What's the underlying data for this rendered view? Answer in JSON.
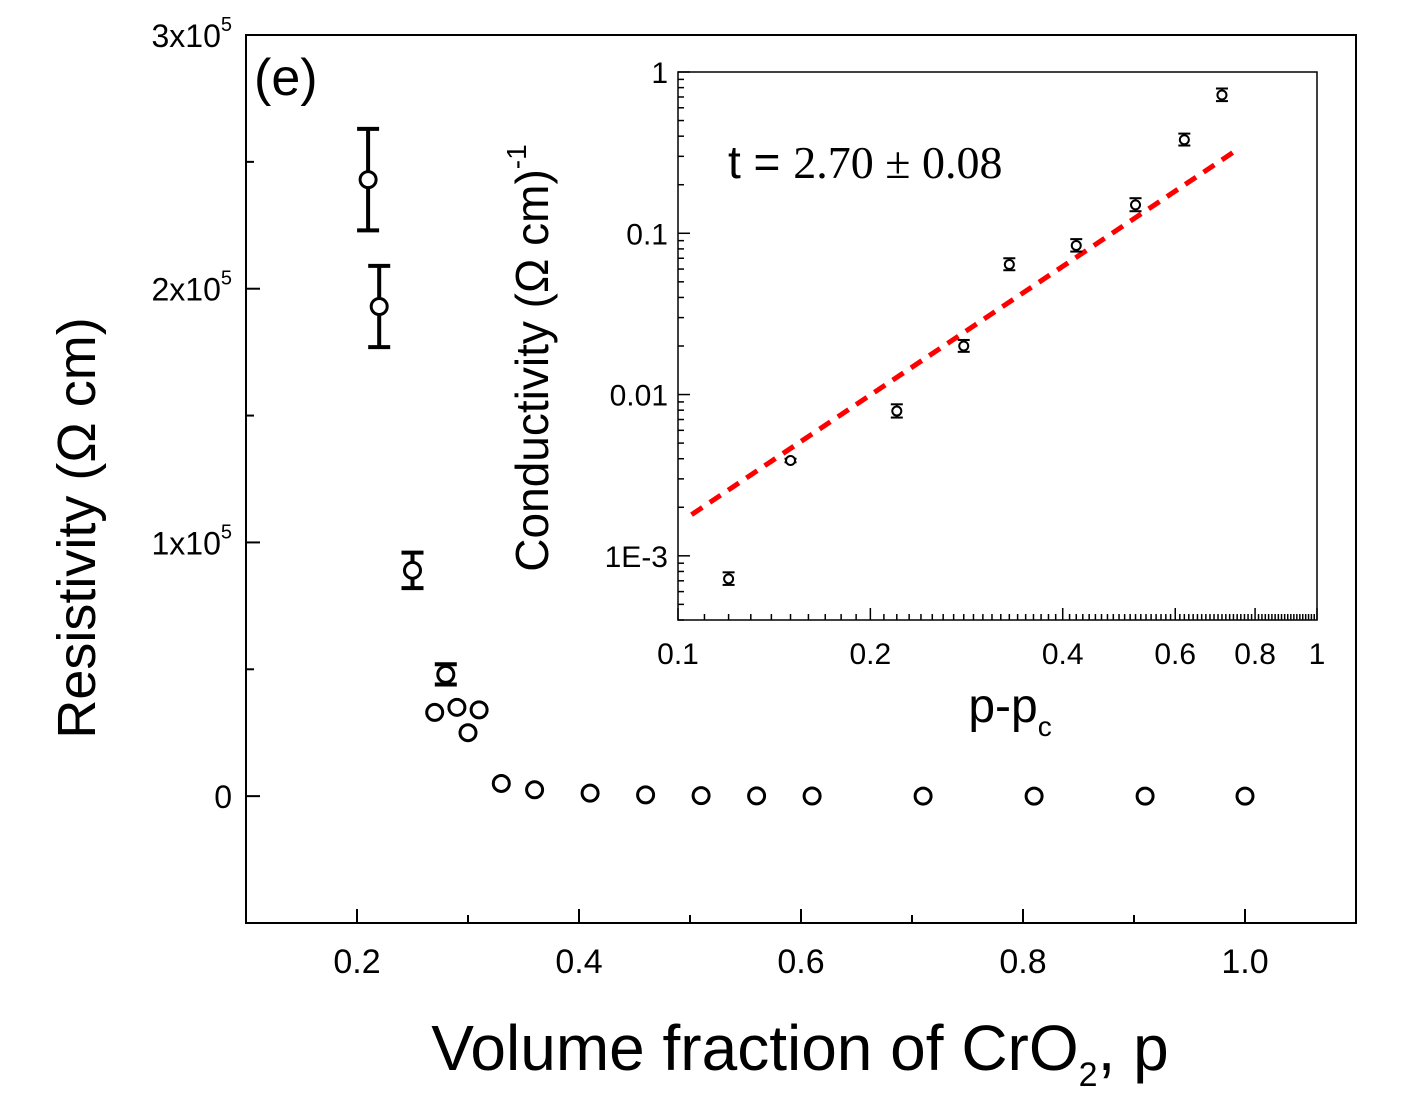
{
  "chart_data": [
    {
      "type": "scatter",
      "panel_label": "(e)",
      "xlabel": "Volume fraction of CrO",
      "xlabel_sub": "2",
      "xlabel_tail": ", p",
      "ylabel": "Resistivity (Ω cm)",
      "xlim": [
        0.1,
        1.1
      ],
      "ylim": [
        -50000,
        300000
      ],
      "x_ticks": [
        {
          "value": 0.2,
          "label": "0.2"
        },
        {
          "value": 0.4,
          "label": "0.4"
        },
        {
          "value": 0.6,
          "label": "0.6"
        },
        {
          "value": 0.8,
          "label": "0.8"
        },
        {
          "value": 1.0,
          "label": "1.0"
        }
      ],
      "x_minor_ticks": [
        0.3,
        0.5,
        0.7,
        0.9
      ],
      "y_ticks": [
        {
          "value": 0,
          "label": "0",
          "exp": ""
        },
        {
          "value": 100000,
          "label": "1x10",
          "exp": "5"
        },
        {
          "value": 200000,
          "label": "2x10",
          "exp": "5"
        },
        {
          "value": 300000,
          "label": "3x10",
          "exp": "5"
        }
      ],
      "y_minor_ticks": [
        50000,
        150000,
        250000
      ],
      "series": [
        {
          "name": "resistivity",
          "points": [
            {
              "x": 0.21,
              "y": 243000,
              "err": 20000
            },
            {
              "x": 0.22,
              "y": 193000,
              "err": 16000
            },
            {
              "x": 0.25,
              "y": 89000,
              "err": 7000
            },
            {
              "x": 0.27,
              "y": 33000,
              "err": 3000
            },
            {
              "x": 0.28,
              "y": 48000,
              "err": 4000
            },
            {
              "x": 0.29,
              "y": 35000,
              "err": 3000
            },
            {
              "x": 0.3,
              "y": 25000,
              "err": 2500
            },
            {
              "x": 0.31,
              "y": 34000,
              "err": 3000
            },
            {
              "x": 0.33,
              "y": 5000,
              "err": 1000
            },
            {
              "x": 0.36,
              "y": 2500,
              "err": 500
            },
            {
              "x": 0.41,
              "y": 1200,
              "err": 300
            },
            {
              "x": 0.46,
              "y": 500,
              "err": 100
            },
            {
              "x": 0.51,
              "y": 200,
              "err": 50
            },
            {
              "x": 0.56,
              "y": 100,
              "err": 30
            },
            {
              "x": 0.61,
              "y": 50,
              "err": 10
            },
            {
              "x": 0.71,
              "y": 20,
              "err": 5
            },
            {
              "x": 0.81,
              "y": 10,
              "err": 3
            },
            {
              "x": 0.91,
              "y": 5,
              "err": 1
            },
            {
              "x": 1.0,
              "y": 3,
              "err": 1
            }
          ]
        }
      ]
    },
    {
      "type": "scatter",
      "inset": true,
      "xscale": "log",
      "yscale": "log",
      "xlabel": "p-p",
      "xlabel_sub": "c",
      "ylabel": "Conductivity (Ω cm)",
      "ylabel_exp": "-1",
      "xlim": [
        0.1,
        1.0
      ],
      "ylim": [
        0.0004,
        1.0
      ],
      "annotation": "t = 2.70 ± 0.08",
      "annotation_lead": "t = ",
      "annotation_value": "2.70 ± 0.08",
      "x_ticks": [
        {
          "value": 0.1,
          "label": "0.1"
        },
        {
          "value": 0.2,
          "label": "0.2"
        },
        {
          "value": 0.4,
          "label": "0.4"
        },
        {
          "value": 0.6,
          "label": "0.6"
        },
        {
          "value": 0.8,
          "label": "0.8"
        },
        {
          "value": 1.0,
          "label": "1"
        }
      ],
      "y_ticks": [
        {
          "value": 0.001,
          "label": "1E-3"
        },
        {
          "value": 0.01,
          "label": "0.01"
        },
        {
          "value": 0.1,
          "label": "0.1"
        },
        {
          "value": 1.0,
          "label": "1"
        }
      ],
      "series": [
        {
          "name": "conductivity",
          "points": [
            {
              "x": 0.12,
              "y": 0.00072,
              "err_lo": 6e-05,
              "err_hi": 7e-05
            },
            {
              "x": 0.15,
              "y": 0.0039,
              "err_lo": 0.0001,
              "err_hi": 0.0001
            },
            {
              "x": 0.22,
              "y": 0.0079,
              "err_lo": 0.0007,
              "err_hi": 0.0008
            },
            {
              "x": 0.28,
              "y": 0.02,
              "err_lo": 0.0016,
              "err_hi": 0.0018
            },
            {
              "x": 0.33,
              "y": 0.064,
              "err_lo": 0.005,
              "err_hi": 0.006
            },
            {
              "x": 0.42,
              "y": 0.084,
              "err_lo": 0.007,
              "err_hi": 0.008
            },
            {
              "x": 0.52,
              "y": 0.15,
              "err_lo": 0.013,
              "err_hi": 0.015
            },
            {
              "x": 0.62,
              "y": 0.38,
              "err_lo": 0.03,
              "err_hi": 0.035
            },
            {
              "x": 0.71,
              "y": 0.72,
              "err_lo": 0.06,
              "err_hi": 0.07
            }
          ]
        },
        {
          "name": "power-law fit",
          "style": "dashed",
          "color": "#ff0000",
          "x": [
            0.105,
            0.75
          ],
          "y": [
            0.0018,
            0.33
          ]
        }
      ]
    }
  ]
}
